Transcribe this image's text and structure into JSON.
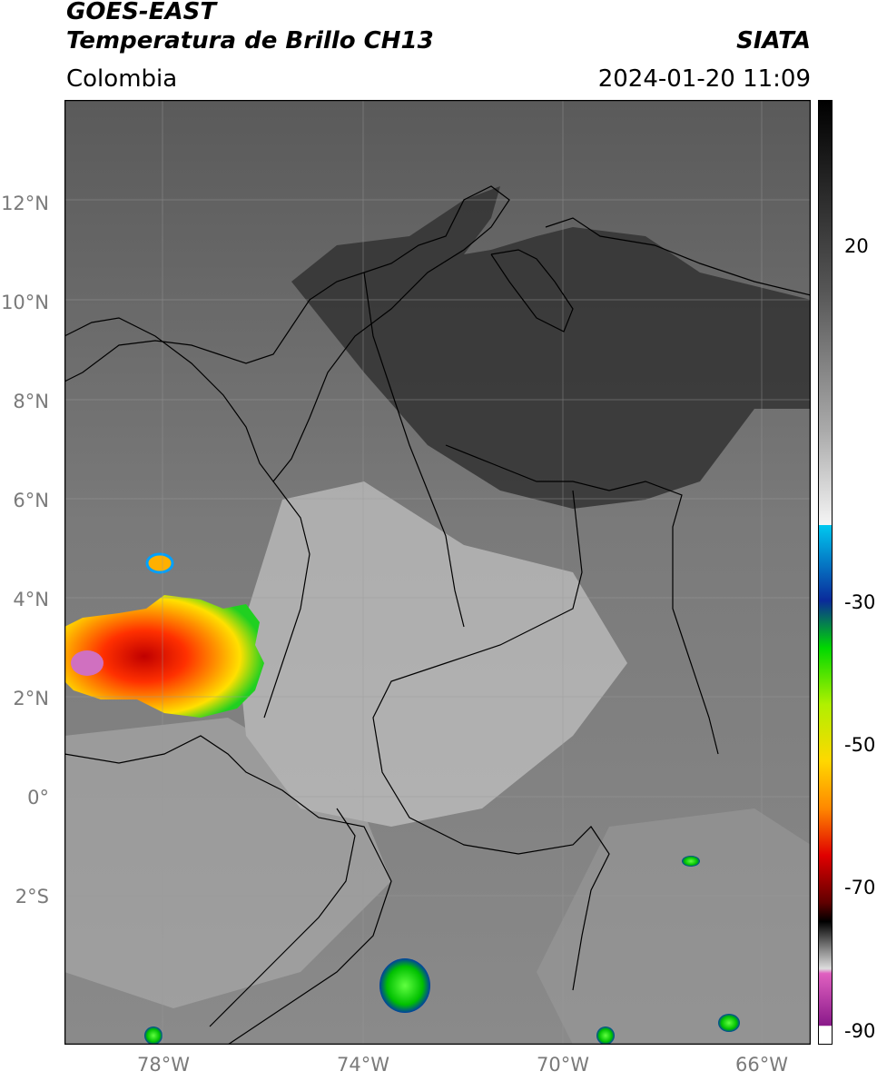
{
  "header": {
    "line1": "GOES-EAST",
    "line2": "Temperatura de Brillo CH13",
    "agency": "SIATA",
    "region": "Colombia",
    "datetime": "2024-01-20 11:09"
  },
  "axes": {
    "lat_labels": [
      "12°N",
      "10°N",
      "8°N",
      "6°N",
      "4°N",
      "2°N",
      "0°",
      "2°S"
    ],
    "lon_labels": [
      "78°W",
      "74°W",
      "70°W",
      "66°W"
    ]
  },
  "colorbar": {
    "labels": [
      "20",
      "-30",
      "-50",
      "-70",
      "-90"
    ],
    "colors": {
      "cyan": "#00c8f0",
      "blue": "#0a2a9a",
      "green": "#00d800",
      "yellow": "#ffd800",
      "orange": "#ff8800",
      "red": "#e00000",
      "darkred": "#600000",
      "magenta": "#e060c0",
      "purple": "#8a1a8a"
    }
  }
}
